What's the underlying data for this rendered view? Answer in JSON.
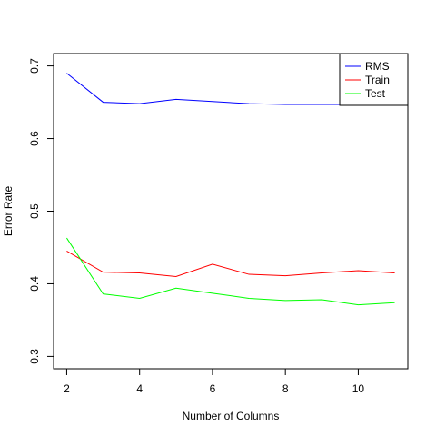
{
  "chart_data": {
    "type": "line",
    "title": "",
    "xlabel": "Number of Columns",
    "ylabel": "Error Rate",
    "x": [
      2,
      3,
      4,
      5,
      6,
      7,
      8,
      9,
      10,
      11
    ],
    "xlim": [
      1.64,
      11.36
    ],
    "ylim": [
      0.283,
      0.717
    ],
    "xticks": [
      2,
      4,
      6,
      8,
      10
    ],
    "yticks": [
      0.3,
      0.4,
      0.5,
      0.6,
      0.7
    ],
    "ytick_labels": [
      "0.3",
      "0.4",
      "0.5",
      "0.6",
      "0.7"
    ],
    "grid": false,
    "legend_position": "top-right",
    "series": [
      {
        "name": "RMS",
        "color": "#0000ff",
        "values": [
          0.69,
          0.65,
          0.648,
          0.654,
          0.651,
          0.648,
          0.647,
          0.647,
          0.647,
          0.647
        ]
      },
      {
        "name": "Train",
        "color": "#ff0000",
        "values": [
          0.445,
          0.416,
          0.415,
          0.41,
          0.427,
          0.413,
          0.411,
          0.415,
          0.418,
          0.415
        ]
      },
      {
        "name": "Test",
        "color": "#00ff00",
        "values": [
          0.463,
          0.386,
          0.38,
          0.394,
          0.387,
          0.38,
          0.377,
          0.378,
          0.371,
          0.374
        ]
      }
    ]
  }
}
